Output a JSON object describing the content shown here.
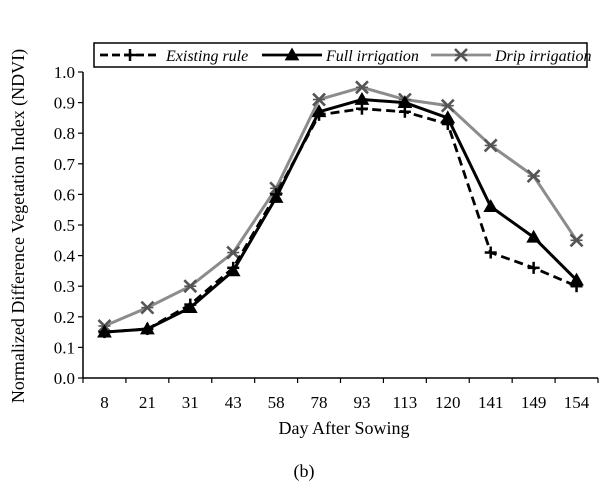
{
  "chart_data": {
    "type": "line",
    "xlabel": "Day After Sowing",
    "ylabel": "Normalized Difference Vegetation Index (NDVI)",
    "caption": "(b)",
    "categories": [
      "8",
      "21",
      "31",
      "43",
      "58",
      "78",
      "93",
      "113",
      "120",
      "141",
      "149",
      "154"
    ],
    "ylim": [
      0.0,
      1.0
    ],
    "yticks": [
      "0.0",
      "0.1",
      "0.2",
      "0.3",
      "0.4",
      "0.5",
      "0.6",
      "0.7",
      "0.8",
      "0.9",
      "1.0"
    ],
    "grid": false,
    "legend_position": "top",
    "series": [
      {
        "name": "Existing rule",
        "line_style": "dashed",
        "marker": "plus",
        "color": "#000000",
        "values": [
          0.15,
          0.16,
          0.24,
          0.36,
          0.6,
          0.86,
          0.88,
          0.87,
          0.83,
          0.41,
          0.36,
          0.3
        ]
      },
      {
        "name": "Full irrigation",
        "line_style": "solid",
        "marker": "triangle",
        "color": "#000000",
        "values": [
          0.15,
          0.16,
          0.23,
          0.35,
          0.59,
          0.87,
          0.91,
          0.9,
          0.85,
          0.56,
          0.46,
          0.32
        ]
      },
      {
        "name": "Drip irrigation",
        "line_style": "solid",
        "marker": "asterisk",
        "color": "#8c8c8c",
        "values": [
          0.17,
          0.23,
          0.3,
          0.41,
          0.62,
          0.91,
          0.95,
          0.91,
          0.89,
          0.76,
          0.66,
          0.45
        ]
      }
    ]
  }
}
